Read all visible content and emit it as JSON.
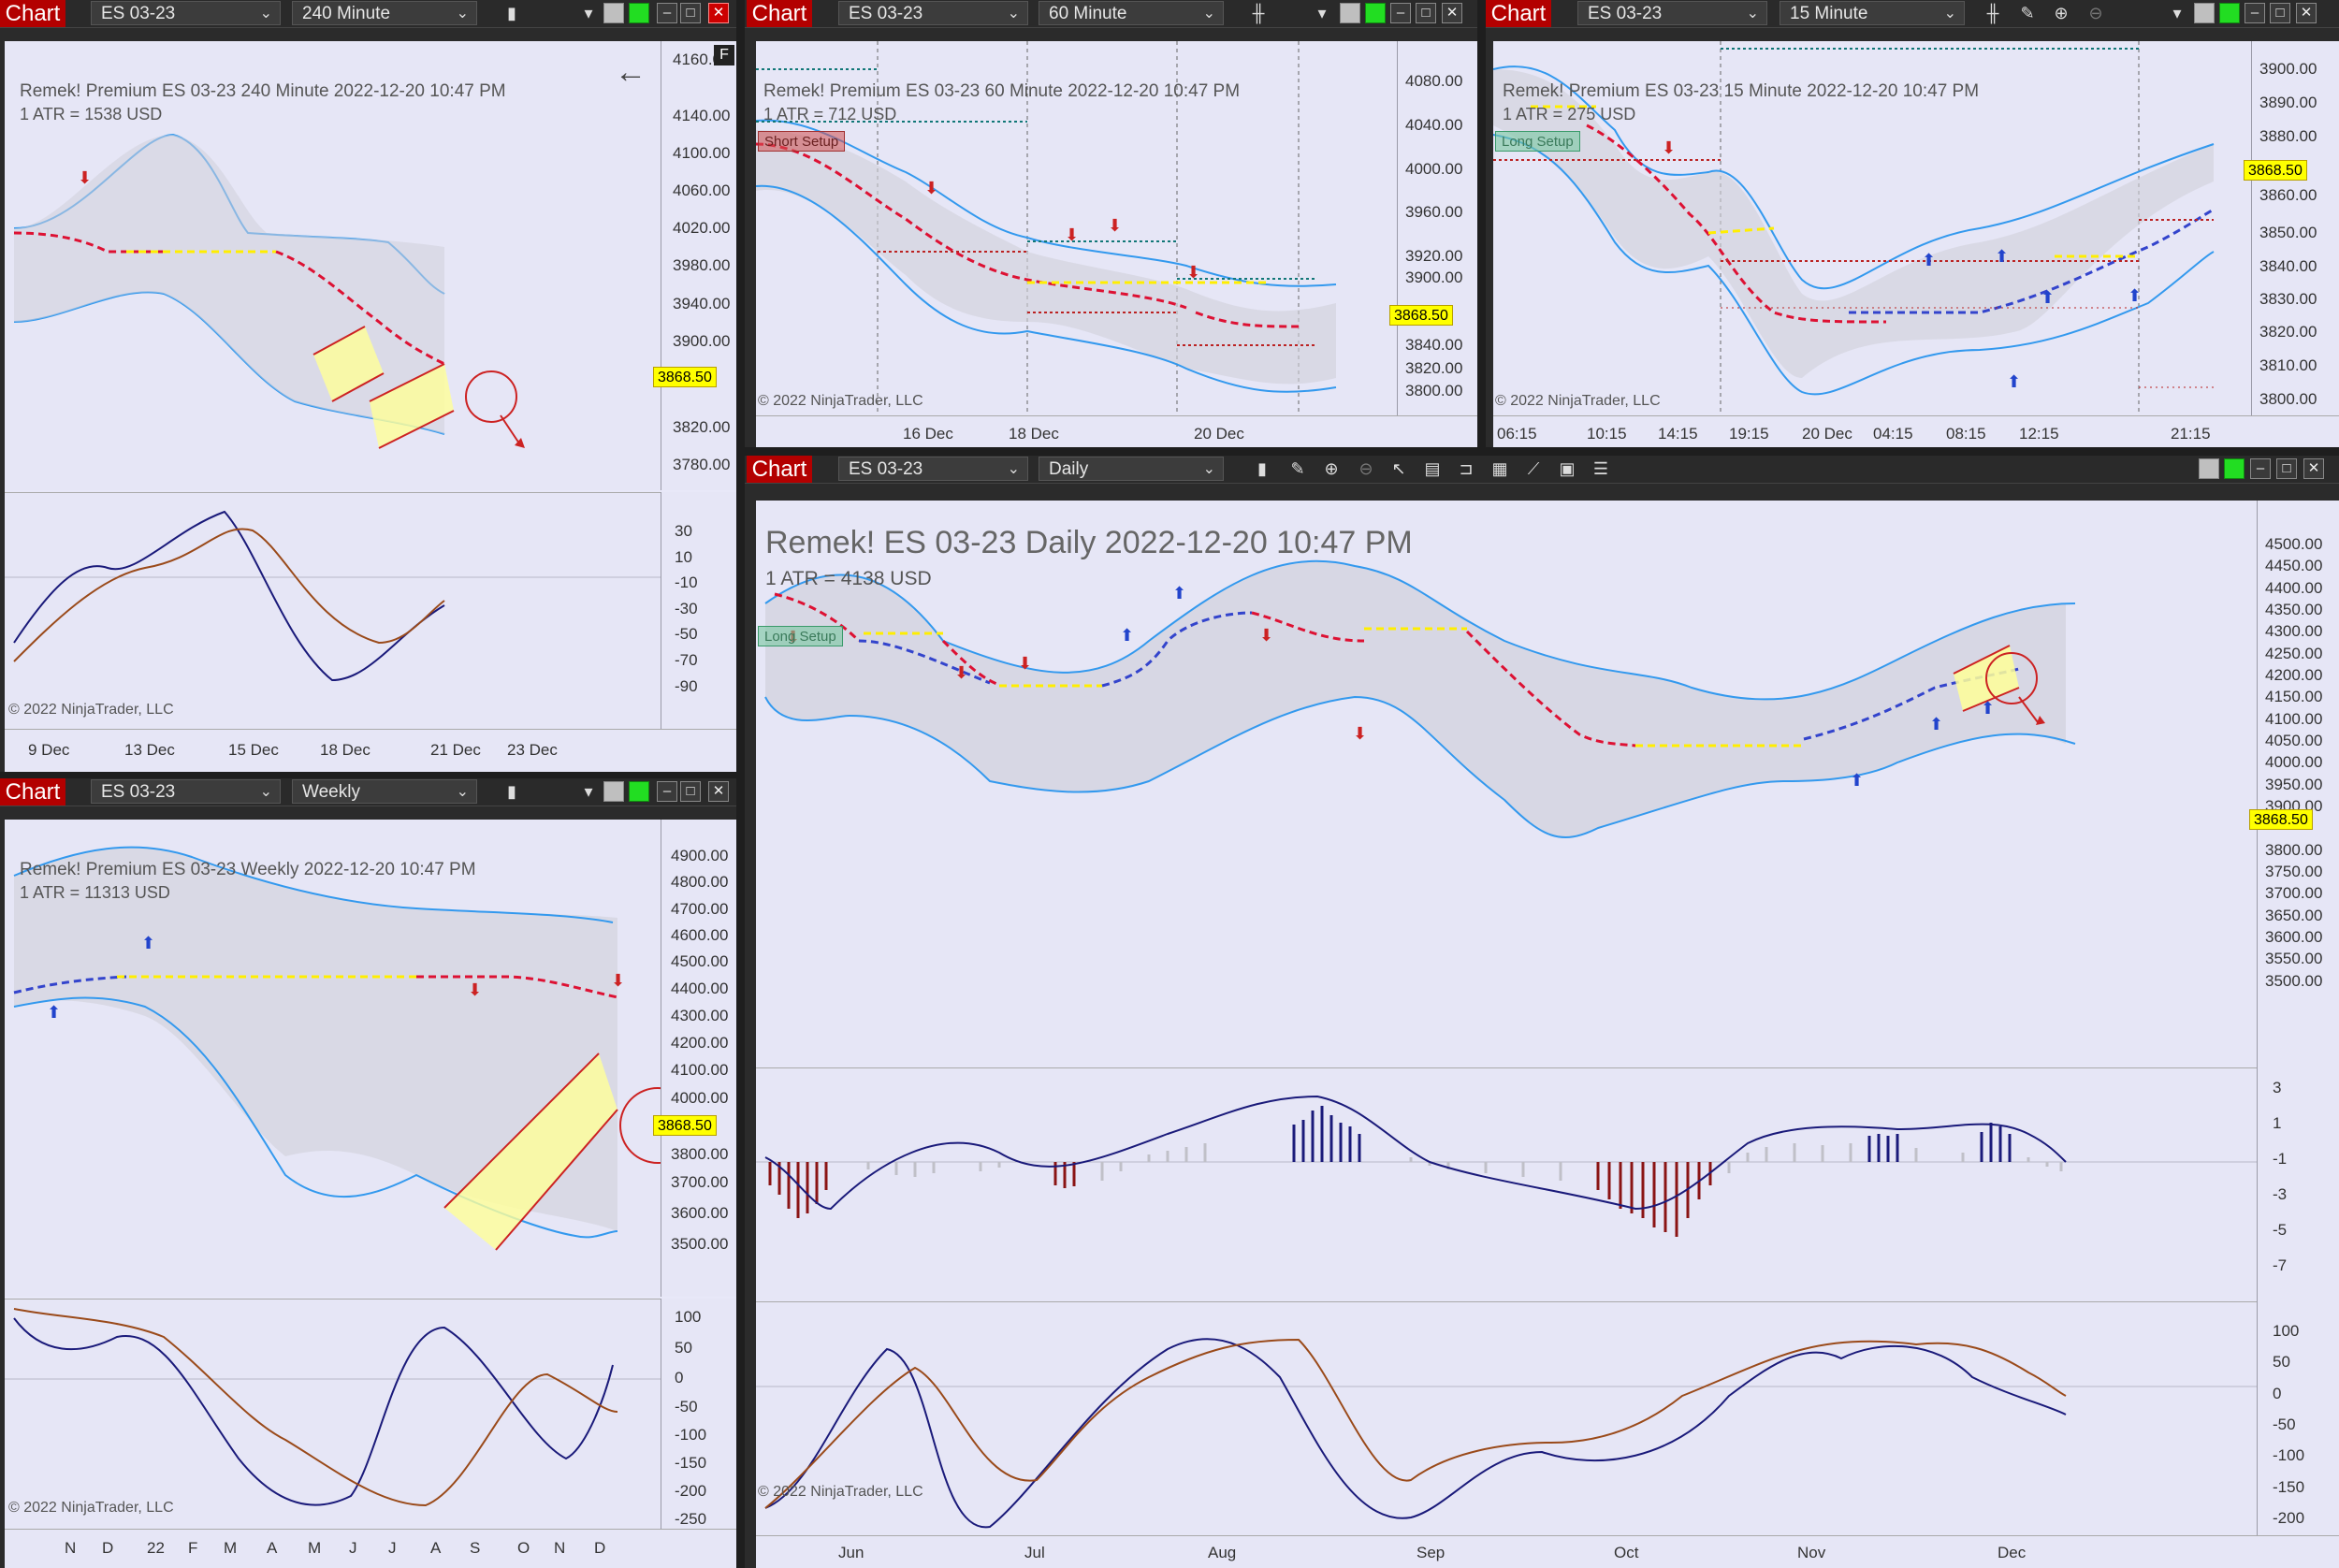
{
  "chart_label": "Chart",
  "copyright": "© 2022 NinjaTrader, LLC",
  "instrument": "ES 03-23",
  "last_price": "3868.50",
  "colors": {
    "red_tab": "#b30000",
    "chart_bg": "#e8e8f8",
    "band_blue": "#3399ee",
    "ma_red": "#dd1133",
    "ma_blue": "#3344cc",
    "yellow": "#ffee00",
    "osc_navy": "#1a1a7a",
    "osc_brown": "#9a4a1a"
  },
  "windows": {
    "w240": {
      "timeframe": "240 Minute",
      "header": "Remek!  Premium  ES 03-23  240 Minute  2022-12-20 10:47 PM",
      "atr": "1 ATR = 1538 USD",
      "letter_f": "F",
      "back_icon": "arrow-left-icon",
      "yticks": [
        "4160.00",
        "4140.00",
        "4100.00",
        "4060.00",
        "4020.00",
        "3980.00",
        "3940.00",
        "3900.00",
        "3820.00",
        "3780.00"
      ],
      "osc_ticks": [
        "30",
        "10",
        "-10",
        "-30",
        "-50",
        "-70",
        "-90"
      ],
      "xlabels": [
        "9 Dec",
        "13 Dec",
        "15 Dec",
        "18 Dec",
        "21 Dec",
        "23 Dec"
      ]
    },
    "w60": {
      "timeframe": "60 Minute",
      "header": "Remek!  Premium  ES 03-23  60 Minute  2022-12-20 10:47 PM",
      "atr": "1 ATR = 712 USD",
      "setup": "Short Setup",
      "yticks": [
        "4080.00",
        "4040.00",
        "4000.00",
        "3960.00",
        "3920.00",
        "3900.00",
        "3840.00",
        "3820.00",
        "3800.00"
      ],
      "xlabels": [
        "16 Dec",
        "18 Dec",
        "20 Dec"
      ]
    },
    "w15": {
      "timeframe": "15 Minute",
      "header": "Remek!  Premium  ES 03-23  15 Minute  2022-12-20 10:47 PM",
      "atr": "1 ATR = 275 USD",
      "setup": "Long Setup",
      "yticks": [
        "3900.00",
        "3890.00",
        "3880.00",
        "3860.00",
        "3850.00",
        "3840.00",
        "3830.00",
        "3820.00",
        "3810.00",
        "3800.00"
      ],
      "xlabels": [
        "06:15",
        "10:15",
        "14:15",
        "19:15",
        "20 Dec",
        "04:15",
        "08:15",
        "12:15",
        "21:15"
      ]
    },
    "weekly": {
      "timeframe": "Weekly",
      "header": "Remek!  Premium  ES 03-23  Weekly  2022-12-20 10:47 PM",
      "atr": "1 ATR = 11313 USD",
      "yticks": [
        "4900.00",
        "4800.00",
        "4700.00",
        "4600.00",
        "4500.00",
        "4400.00",
        "4300.00",
        "4200.00",
        "4100.00",
        "4000.00",
        "3800.00",
        "3700.00",
        "3600.00",
        "3500.00"
      ],
      "osc_ticks": [
        "100",
        "50",
        "0",
        "-50",
        "-100",
        "-150",
        "-200",
        "-250"
      ],
      "xlabels": [
        "N",
        "D",
        "22",
        "F",
        "M",
        "A",
        "M",
        "J",
        "J",
        "A",
        "S",
        "O",
        "N",
        "D"
      ]
    },
    "daily": {
      "timeframe": "Daily",
      "header": "Remek!  ES 03-23  Daily  2022-12-20 10:47 PM",
      "atr": "1 ATR = 4138 USD",
      "setup": "Long Setup",
      "yticks": [
        "4500.00",
        "4450.00",
        "4400.00",
        "4350.00",
        "4300.00",
        "4250.00",
        "4200.00",
        "4150.00",
        "4100.00",
        "4050.00",
        "4000.00",
        "3950.00",
        "3900.00",
        "3800.00",
        "3750.00",
        "3700.00",
        "3650.00",
        "3600.00",
        "3550.00",
        "3500.00"
      ],
      "hist_ticks": [
        "3",
        "1",
        "-1",
        "-3",
        "-5",
        "-7"
      ],
      "osc_ticks": [
        "100",
        "50",
        "0",
        "-50",
        "-100",
        "-150",
        "-200"
      ],
      "xlabels": [
        "Jun",
        "Jul",
        "Aug",
        "Sep",
        "Oct",
        "Nov",
        "Dec"
      ]
    }
  }
}
